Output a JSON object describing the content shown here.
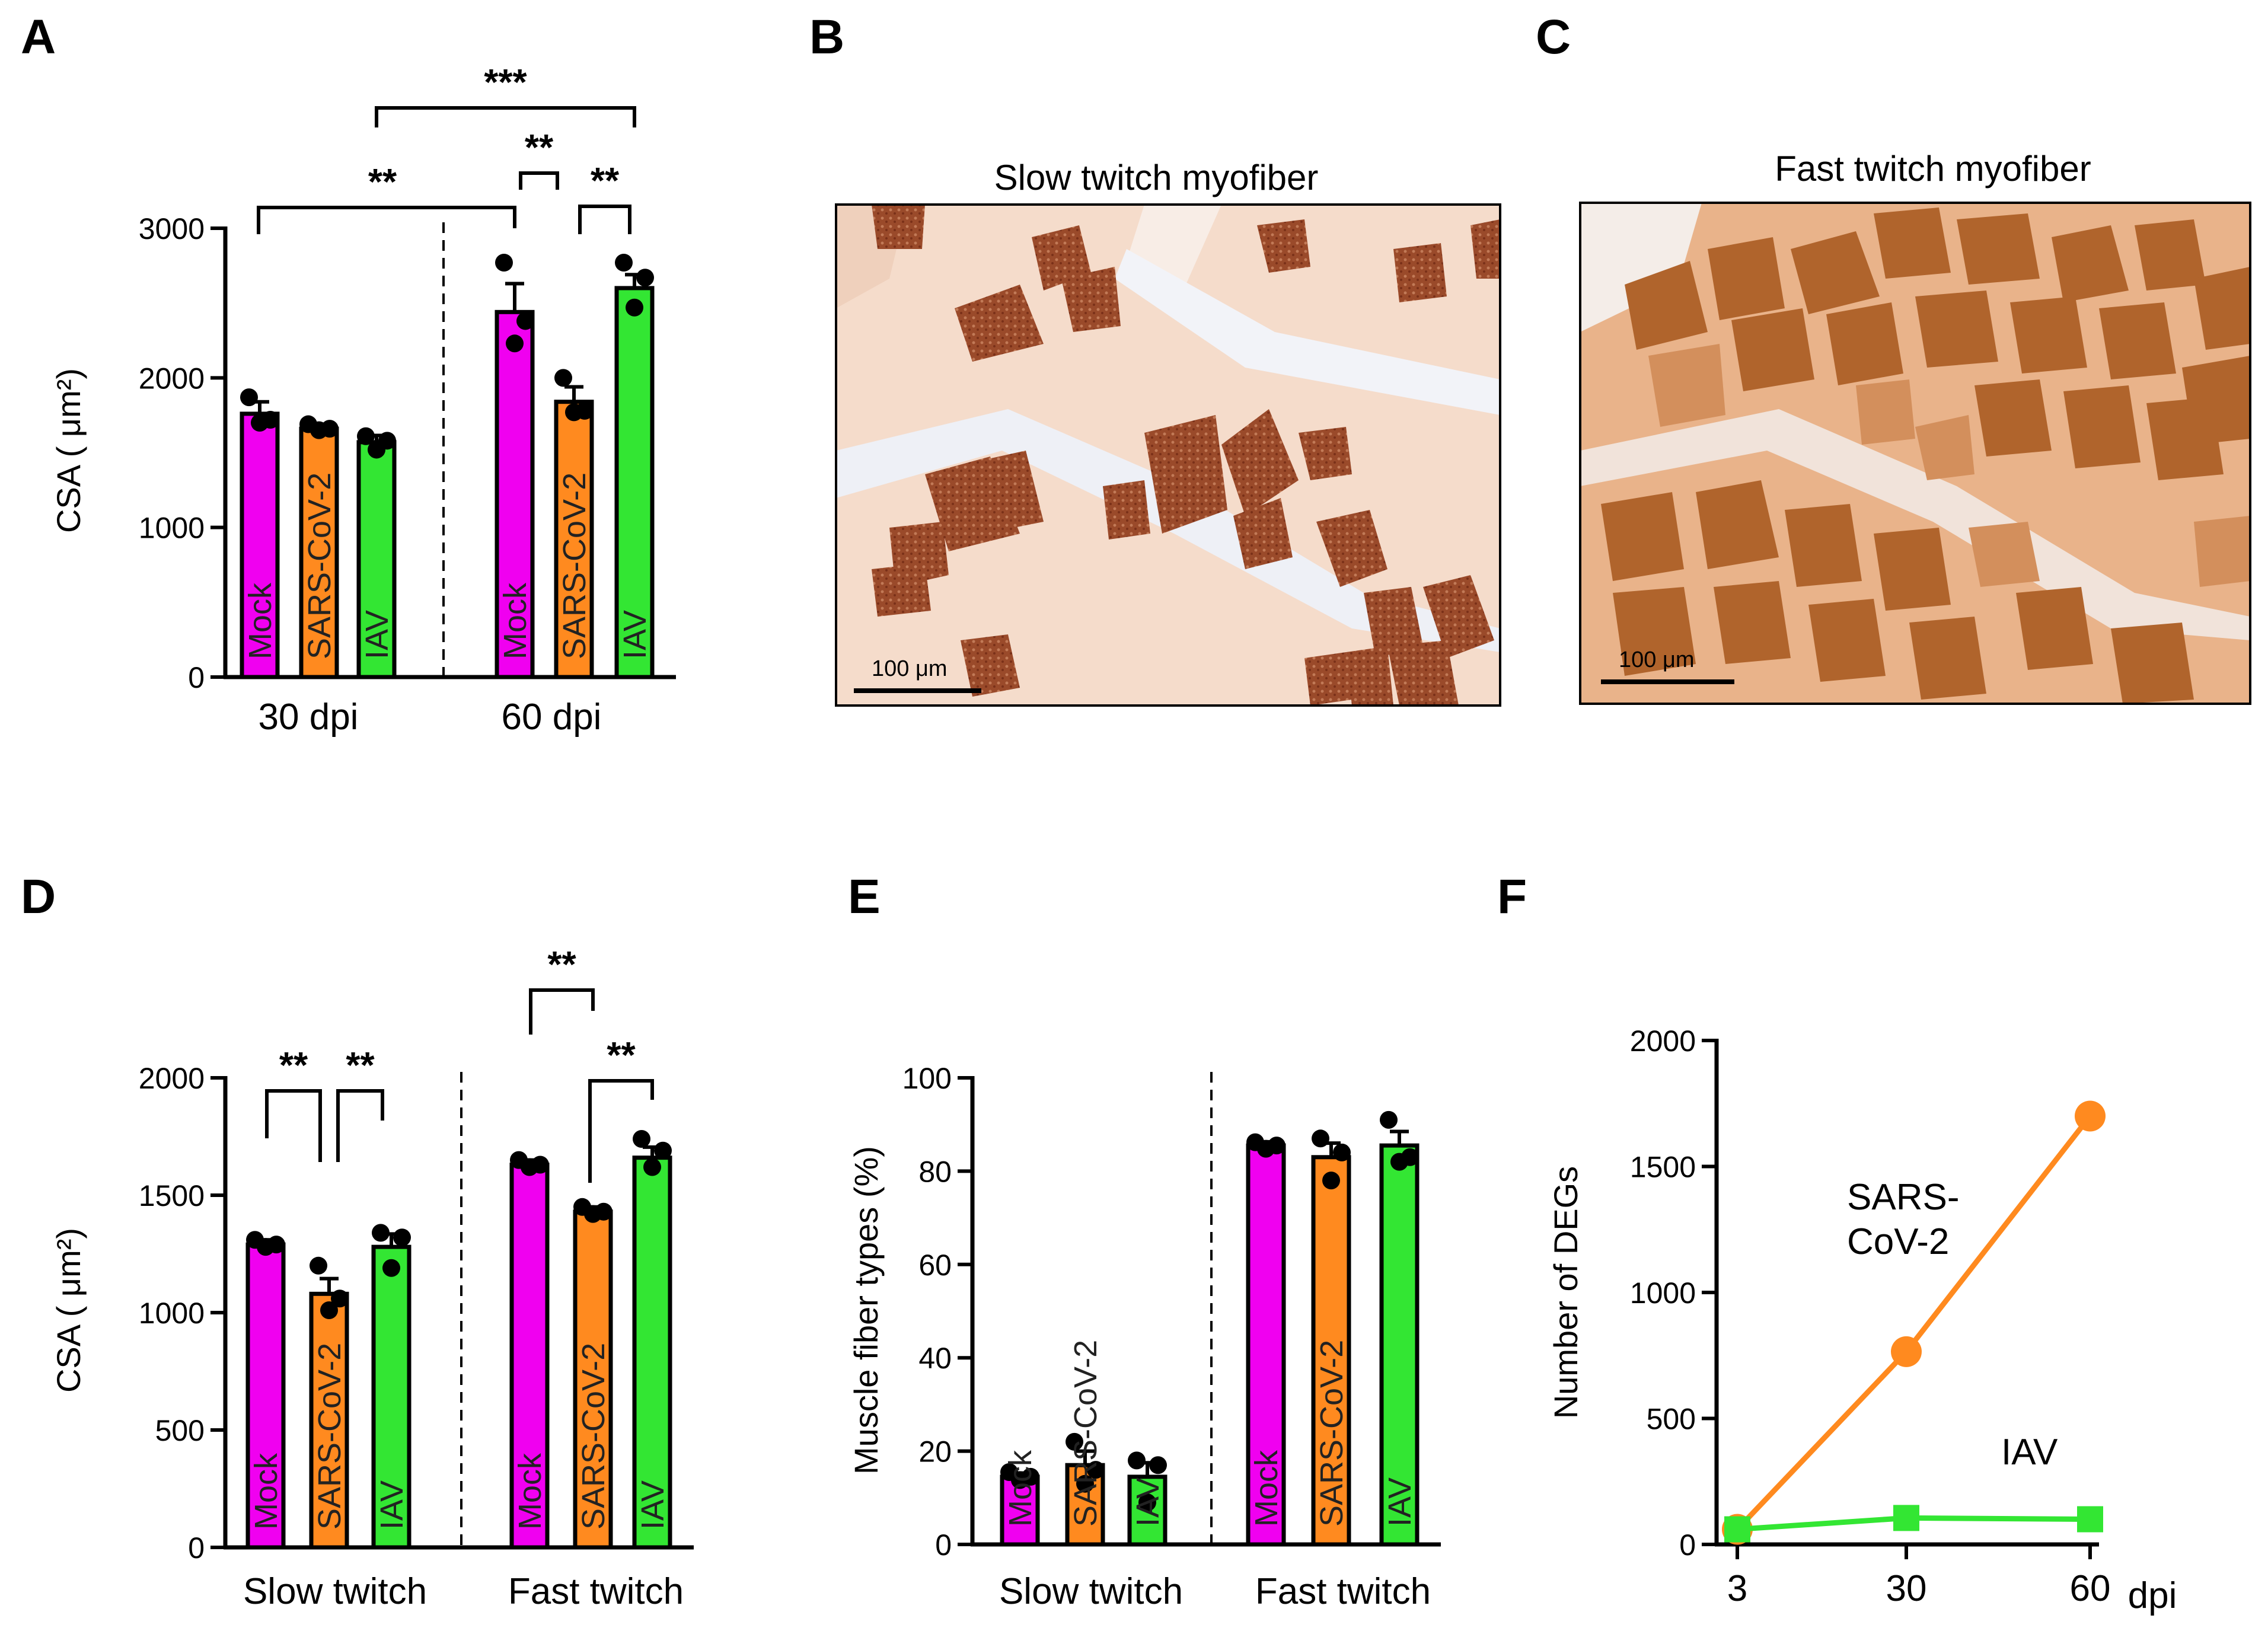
{
  "colors": {
    "mock": "#f000f0",
    "sars": "#ff8a1f",
    "iav": "#33e633",
    "axis": "#000000"
  },
  "panel_labels": [
    "A",
    "B",
    "C",
    "D",
    "E",
    "F"
  ],
  "panel_b": {
    "title": "Slow twitch myofiber",
    "scale_label": "100 μm"
  },
  "panel_c": {
    "title": "Fast twitch myofiber",
    "scale_label": "100 μm"
  },
  "chart_data": [
    {
      "panel": "A",
      "type": "bar",
      "ylabel": "CSA ( μm²)",
      "ylim": [
        0,
        3000
      ],
      "yticks": [
        "0",
        "1000",
        "2000",
        "3000"
      ],
      "groups": [
        {
          "name": "30 dpi",
          "bars": [
            {
              "label": "Mock",
              "value": 1760,
              "err": 80,
              "points": [
                1870,
                1720,
                1700
              ]
            },
            {
              "label": "SARS-CoV-2",
              "value": 1660,
              "err": 30,
              "points": [
                1690,
                1660,
                1650
              ]
            },
            {
              "label": "IAV",
              "value": 1570,
              "err": 45,
              "points": [
                1610,
                1580,
                1520
              ]
            }
          ]
        },
        {
          "name": "60 dpi",
          "bars": [
            {
              "label": "Mock",
              "value": 2440,
              "err": 190,
              "points": [
                2770,
                2380,
                2230
              ]
            },
            {
              "label": "SARS-CoV-2",
              "value": 1840,
              "err": 100,
              "points": [
                2000,
                1780,
                1770
              ]
            },
            {
              "label": "IAV",
              "value": 2600,
              "err": 90,
              "points": [
                2770,
                2670,
                2470
              ]
            }
          ]
        }
      ],
      "significance": [
        "**",
        "***",
        "**",
        "**"
      ]
    },
    {
      "panel": "D",
      "type": "bar",
      "ylabel": "CSA ( μm²)",
      "ylim": [
        0,
        2000
      ],
      "yticks": [
        "0",
        "500",
        "1000",
        "1500",
        "2000"
      ],
      "groups": [
        {
          "name": "Slow twitch",
          "bars": [
            {
              "label": "Mock",
              "value": 1290,
              "err": 20,
              "points": [
                1310,
                1290,
                1280
              ]
            },
            {
              "label": "SARS-CoV-2",
              "value": 1080,
              "err": 65,
              "points": [
                1200,
                1060,
                1010
              ]
            },
            {
              "label": "IAV",
              "value": 1280,
              "err": 55,
              "points": [
                1340,
                1320,
                1190
              ]
            }
          ]
        },
        {
          "name": "Fast twitch",
          "bars": [
            {
              "label": "Mock",
              "value": 1630,
              "err": 20,
              "points": [
                1650,
                1630,
                1620
              ]
            },
            {
              "label": "SARS-CoV-2",
              "value": 1430,
              "err": 20,
              "points": [
                1450,
                1430,
                1420
              ]
            },
            {
              "label": "IAV",
              "value": 1660,
              "err": 45,
              "points": [
                1740,
                1690,
                1620
              ]
            }
          ]
        }
      ],
      "significance": [
        "**",
        "**",
        "**",
        "**"
      ]
    },
    {
      "panel": "E",
      "type": "bar",
      "ylabel": "Muscle fiber types (%)",
      "ylim": [
        0,
        100
      ],
      "yticks": [
        "0",
        "20",
        "40",
        "60",
        "80",
        "100"
      ],
      "groups": [
        {
          "name": "Slow twitch",
          "bars": [
            {
              "label": "Mock",
              "value": 14.5,
              "err": 0.8,
              "points": [
                15.5,
                14.5,
                13.8
              ]
            },
            {
              "label": "SARS-CoV-2",
              "value": 17,
              "err": 3,
              "points": [
                22,
                16,
                13
              ]
            },
            {
              "label": "IAV",
              "value": 14.5,
              "err": 3,
              "points": [
                18,
                17,
                9
              ]
            }
          ]
        },
        {
          "name": "Fast twitch",
          "bars": [
            {
              "label": "Mock",
              "value": 85.5,
              "err": 0.8,
              "points": [
                86.2,
                85.5,
                84.8
              ]
            },
            {
              "label": "SARS-CoV-2",
              "value": 83,
              "err": 3,
              "points": [
                87,
                84,
                78
              ]
            },
            {
              "label": "IAV",
              "value": 85.5,
              "err": 3,
              "points": [
                91,
                83,
                82
              ]
            }
          ]
        }
      ]
    },
    {
      "panel": "F",
      "type": "line",
      "xlabel": "dpi",
      "ylabel": "Number of DEGs",
      "x": [
        3,
        30,
        60
      ],
      "xticks": [
        "3",
        "30",
        "60"
      ],
      "ylim": [
        0,
        2000
      ],
      "yticks": [
        "0",
        "500",
        "1000",
        "1500",
        "2000"
      ],
      "series": [
        {
          "name": "SARS-CoV-2",
          "label_lines": [
            "SARS-",
            "CoV-2"
          ],
          "values": [
            60,
            765,
            1700
          ],
          "marker": "circle"
        },
        {
          "name": "IAV",
          "label_lines": [
            "IAV"
          ],
          "values": [
            60,
            105,
            100
          ],
          "marker": "square"
        }
      ]
    }
  ]
}
